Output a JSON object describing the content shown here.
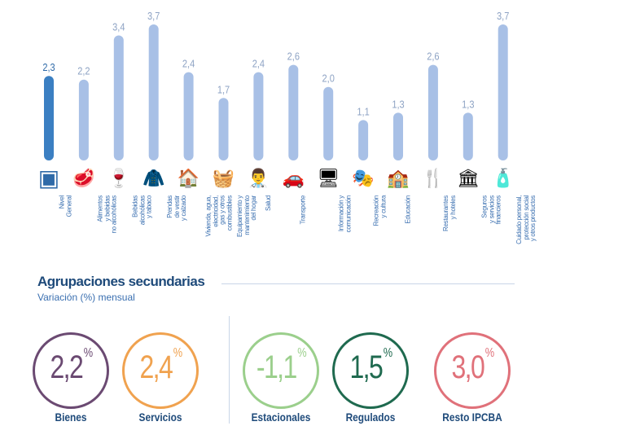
{
  "chart_data": {
    "type": "bar",
    "title": "",
    "xlabel": "",
    "ylabel": "",
    "ylim": [
      0,
      3.7
    ],
    "grid": false,
    "categories": [
      "Nivel\nGeneral",
      "Alimentos\ny bebidas\nno alcohólicas",
      "Bebidas\nalcohólicas\ny tabaco",
      "Prendas\nde vestir\ny calzado",
      "Vivienda, agua,\nelectricidad,\ngas y otros\ncombustibles",
      "Equipamiento y\nmantenimiento\ndel hogar",
      "Salud",
      "Transporte",
      "Información y\ncomunicación",
      "Recreación\ny cultura",
      "Educación",
      "Restaurantes\ny hoteles",
      "Seguros\ny servicios\nfinancieros",
      "Cuidado personal,\nprotección social\ny otros productos"
    ],
    "values": [
      2.3,
      2.2,
      3.4,
      3.7,
      2.4,
      1.7,
      2.4,
      2.6,
      2.0,
      1.1,
      1.3,
      2.6,
      1.3,
      3.7
    ],
    "value_labels": [
      "2,3",
      "2,2",
      "3,4",
      "3,7",
      "2,4",
      "1,7",
      "2,4",
      "2,6",
      "2,0",
      "1,1",
      "1,3",
      "2,6",
      "1,3",
      "3,7"
    ],
    "icons": [
      "ipcba-logo-icon",
      "food-icon",
      "wine-tobacco-icon",
      "jacket-shoe-icon",
      "house-icon",
      "washing-machine-icon",
      "doctor-icon",
      "car-plane-icon",
      "computer-icon",
      "theater-masks-icon",
      "school-icon",
      "cutlery-icon",
      "bank-icon",
      "personal-care-icon"
    ],
    "colors": {
      "highlight": "#3b7fc2",
      "bar": "#a8c0e6",
      "highlight_label": "#2f6aa8",
      "label": "#8ea3c4"
    }
  },
  "secondary": {
    "title": "Agrupaciones secundarias",
    "subtitle": "Variación (%) mensual",
    "items": [
      {
        "label": "Bienes",
        "value": "2,2",
        "unit": "%",
        "color": "#6b4a72"
      },
      {
        "label": "Servicios",
        "value": "2,4",
        "unit": "%",
        "color": "#f0a24f"
      },
      {
        "label": "Estacionales",
        "value": "-1,1",
        "unit": "%",
        "color": "#9bcf8c"
      },
      {
        "label": "Regulados",
        "value": "1,5",
        "unit": "%",
        "color": "#1f6a4f"
      },
      {
        "label": "Resto IPCBA",
        "value": "3,0",
        "unit": "%",
        "color": "#e0717a"
      }
    ]
  }
}
